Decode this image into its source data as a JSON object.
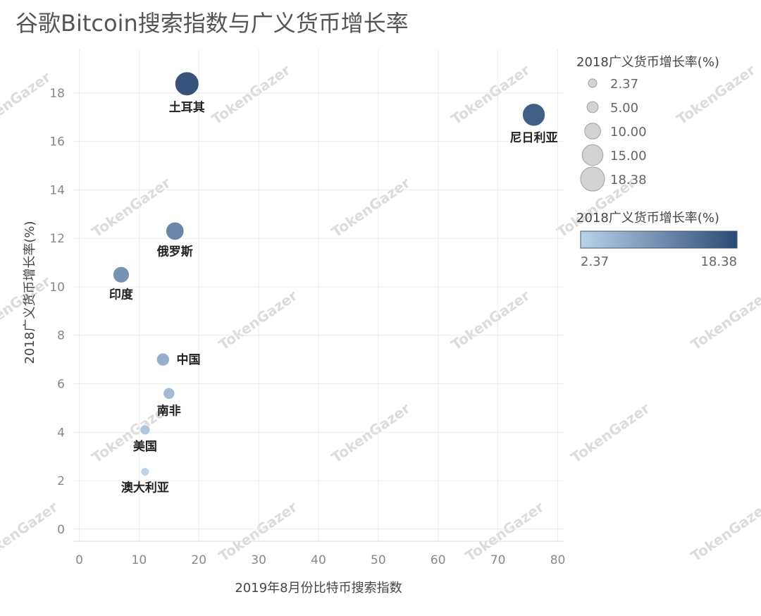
{
  "title": "谷歌Bitcoin搜索指数与广义货币增长率",
  "watermark": "TokenGazer",
  "chart_data": {
    "type": "scatter",
    "title": "谷歌Bitcoin搜索指数与广义货币增长率",
    "xlabel": "2019年8月份比特币搜索指数",
    "ylabel": "2018广义货币增长率(%)",
    "xlim": [
      -1,
      81
    ],
    "ylim": [
      -0.5,
      19.8
    ],
    "xticks": [
      0,
      10,
      20,
      30,
      40,
      50,
      60,
      70,
      80
    ],
    "yticks": [
      0,
      2,
      4,
      6,
      8,
      10,
      12,
      14,
      16,
      18
    ],
    "grid": true,
    "points": [
      {
        "label": "土耳其",
        "x": 18,
        "y": 18.38
      },
      {
        "label": "尼日利亚",
        "x": 76,
        "y": 17.1
      },
      {
        "label": "俄罗斯",
        "x": 16,
        "y": 12.3
      },
      {
        "label": "印度",
        "x": 7,
        "y": 10.5
      },
      {
        "label": "中国",
        "x": 14,
        "y": 7.0
      },
      {
        "label": "南非",
        "x": 15,
        "y": 5.6
      },
      {
        "label": "美国",
        "x": 11,
        "y": 4.1
      },
      {
        "label": "澳大利亚",
        "x": 11,
        "y": 2.37
      }
    ],
    "size_legend": {
      "title": "2018广义货币增长率(%)",
      "values": [
        2.37,
        5.0,
        10.0,
        15.0,
        18.38
      ],
      "labels": [
        "2.37",
        "5.00",
        "10.00",
        "15.00",
        "18.38"
      ]
    },
    "color_legend": {
      "title": "2018广义货币增长率(%)",
      "min": 2.37,
      "max": 18.38,
      "min_label": "2.37",
      "max_label": "18.38",
      "color_low": "#b9d3ea",
      "color_high": "#2c4a74"
    }
  }
}
